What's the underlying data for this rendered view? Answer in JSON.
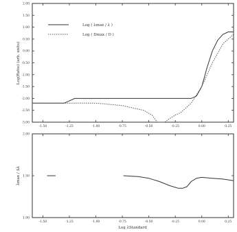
{
  "chart_data": [
    {
      "type": "line",
      "title": "",
      "xlabel": "",
      "ylabel": "Log(Ratio) (arb. units)",
      "xlim": [
        -1.6,
        0.3
      ],
      "ylim": [
        -3.0,
        2.0
      ],
      "x_ticks": [
        -1.5,
        -1.25,
        -1.0,
        -0.75,
        -0.5,
        -0.25,
        0.0,
        0.25
      ],
      "x_tick_labels": [
        "-1.50",
        "-1.25",
        "-1.00",
        "-0.75",
        "-0.50",
        "-0.25",
        "0.00",
        "0.25"
      ],
      "y_ticks": [
        -3.0,
        -2.5,
        -2.0,
        -1.5,
        -1.0,
        -0.5,
        0.0,
        0.5,
        1.0,
        1.5,
        2.0
      ],
      "y_tick_labels": [
        "-3.00",
        "-2.50",
        "-2.00",
        "-1.50",
        "-1.00",
        "-0.50",
        "0.00",
        "0.50",
        "1.00",
        "1.50",
        "2.00"
      ],
      "grid": false,
      "legend": "top-left",
      "series": [
        {
          "name": "Log ( λmax / λ )",
          "style": "solid",
          "color": "#333333",
          "x": [
            -1.6,
            -1.3,
            -1.25,
            -1.2,
            -0.8,
            -0.4,
            -0.1,
            -0.05,
            0.0,
            0.05,
            0.1,
            0.15,
            0.2,
            0.25,
            0.3
          ],
          "y": [
            -2.2,
            -2.2,
            -2.1,
            -2.0,
            -2.0,
            -2.0,
            -2.0,
            -1.9,
            -1.5,
            -0.7,
            0.0,
            0.45,
            0.7,
            0.8,
            0.8
          ]
        },
        {
          "name": "Log ( Dmax / D )",
          "style": "dotted",
          "color": "#555555",
          "x": [
            -1.6,
            -1.3,
            -1.0,
            -0.75,
            -0.55,
            -0.47,
            -0.42,
            -0.39,
            -0.35,
            -0.32,
            -0.25,
            -0.2,
            -0.1,
            0.0,
            0.1,
            0.2,
            0.3
          ],
          "y": [
            -2.2,
            -2.2,
            -2.2,
            -2.3,
            -2.5,
            -2.7,
            -3.0,
            -3.0,
            -3.0,
            -2.9,
            -2.7,
            -2.6,
            -2.2,
            -1.5,
            -0.5,
            0.3,
            0.7
          ]
        }
      ]
    },
    {
      "type": "line",
      "title": "",
      "xlabel": "Log λStandard",
      "ylabel": "λmax / Δλ",
      "xlim": [
        -1.6,
        0.3
      ],
      "ylim": [
        1.0,
        2.0
      ],
      "x_ticks": [
        -1.5,
        -1.25,
        -1.0,
        -0.75,
        -0.5,
        -0.25,
        0.0,
        0.25
      ],
      "x_tick_labels": [
        "-1.50",
        "-1.25",
        "-1.00",
        "-0.75",
        "-0.50",
        "-0.25",
        "0.00",
        "0.25"
      ],
      "y_ticks": [
        1.0,
        1.5,
        2.0
      ],
      "y_tick_labels": [
        "1.00",
        "1.50",
        "2.00"
      ],
      "grid": false,
      "legend": "none",
      "series": [
        {
          "segments": [
            {
              "x": [
                -1.46,
                -1.38
              ],
              "y": [
                1.5,
                1.5
              ]
            },
            {
              "x": [
                -0.74,
                -0.6,
                -0.5,
                -0.4,
                -0.3,
                -0.22,
                -0.18,
                -0.14,
                -0.1,
                -0.05,
                0.0,
                0.1,
                0.2,
                0.3
              ],
              "y": [
                1.5,
                1.49,
                1.47,
                1.43,
                1.38,
                1.35,
                1.35,
                1.37,
                1.43,
                1.47,
                1.48,
                1.47,
                1.46,
                1.44
              ]
            }
          ],
          "style": "solid",
          "color": "#333333"
        }
      ]
    }
  ]
}
